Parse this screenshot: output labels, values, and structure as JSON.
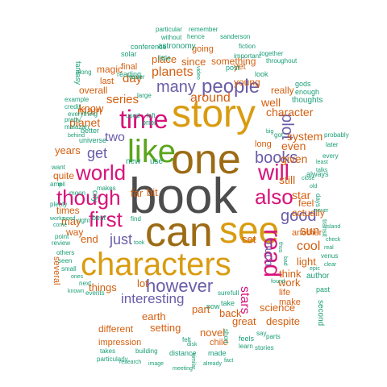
{
  "palette": {
    "gray": "#4d4d4d",
    "gold": "#d99b0f",
    "brown": "#9c6b14",
    "pink": "#d8127a",
    "green": "#5aa51c",
    "purple": "#6a5ca8",
    "orange": "#d45f0f",
    "teal": "#1b9e77"
  },
  "words": [
    {
      "text": "book",
      "color": "gray"
    },
    {
      "text": "one",
      "color": "brown"
    },
    {
      "text": "story",
      "color": "gold"
    },
    {
      "text": "can",
      "color": "brown"
    },
    {
      "text": "see",
      "color": "gold"
    },
    {
      "text": "characters",
      "color": "gold"
    },
    {
      "text": "like",
      "color": "green"
    },
    {
      "text": "time",
      "color": "pink"
    },
    {
      "text": "world",
      "color": "pink"
    },
    {
      "text": "though",
      "color": "pink"
    },
    {
      "text": "also",
      "color": "pink"
    },
    {
      "text": "will",
      "color": "pink"
    },
    {
      "text": "first",
      "color": "pink"
    },
    {
      "text": "read",
      "color": "pink"
    },
    {
      "text": "people",
      "color": "purple"
    },
    {
      "text": "however",
      "color": "purple"
    },
    {
      "text": "books",
      "color": "purple"
    },
    {
      "text": "many",
      "color": "purple"
    },
    {
      "text": "good",
      "color": "purple"
    },
    {
      "text": "plot",
      "color": "purple"
    },
    {
      "text": "get",
      "color": "purple"
    },
    {
      "text": "two",
      "color": "purple"
    },
    {
      "text": "just",
      "color": "purple"
    },
    {
      "text": "interesting",
      "color": "purple"
    },
    {
      "text": "much",
      "color": "purple"
    },
    {
      "text": "stars",
      "color": "pink"
    },
    {
      "text": "planets",
      "color": "orange"
    },
    {
      "text": "around",
      "color": "orange"
    },
    {
      "text": "series",
      "color": "orange"
    },
    {
      "text": "day",
      "color": "orange"
    },
    {
      "text": "planet",
      "color": "orange"
    },
    {
      "text": "main",
      "color": "orange"
    },
    {
      "text": "since",
      "color": "orange"
    },
    {
      "text": "place",
      "color": "orange"
    },
    {
      "text": "well",
      "color": "orange"
    },
    {
      "text": "character",
      "color": "orange"
    },
    {
      "text": "system",
      "color": "orange"
    },
    {
      "text": "even",
      "color": "orange"
    },
    {
      "text": "given",
      "color": "orange"
    },
    {
      "text": "still",
      "color": "orange"
    },
    {
      "text": "star",
      "color": "orange"
    },
    {
      "text": "cool",
      "color": "orange"
    },
    {
      "text": "sun",
      "color": "orange"
    },
    {
      "text": "set",
      "color": "orange"
    },
    {
      "text": "light",
      "color": "orange"
    },
    {
      "text": "think",
      "color": "orange"
    },
    {
      "text": "work",
      "color": "orange"
    },
    {
      "text": "science",
      "color": "orange"
    },
    {
      "text": "know",
      "color": "orange"
    },
    {
      "text": "years",
      "color": "orange"
    },
    {
      "text": "far",
      "color": "orange"
    },
    {
      "text": "bit",
      "color": "orange"
    },
    {
      "text": "may",
      "color": "orange"
    },
    {
      "text": "end",
      "color": "orange"
    },
    {
      "text": "things",
      "color": "orange"
    },
    {
      "text": "lot",
      "color": "orange"
    },
    {
      "text": "part",
      "color": "orange"
    },
    {
      "text": "earth",
      "color": "orange"
    },
    {
      "text": "setting",
      "color": "orange"
    },
    {
      "text": "novel",
      "color": "orange"
    },
    {
      "text": "back",
      "color": "orange"
    },
    {
      "text": "great",
      "color": "orange"
    },
    {
      "text": "despite",
      "color": "orange"
    },
    {
      "text": "overall",
      "color": "orange"
    },
    {
      "text": "quite",
      "color": "orange"
    },
    {
      "text": "times",
      "color": "orange"
    },
    {
      "text": "way",
      "color": "orange"
    },
    {
      "text": "several",
      "color": "orange"
    },
    {
      "text": "last",
      "color": "orange"
    },
    {
      "text": "magic",
      "color": "orange"
    },
    {
      "text": "final",
      "color": "orange"
    },
    {
      "text": "going",
      "color": "orange"
    },
    {
      "text": "something",
      "color": "orange"
    },
    {
      "text": "young",
      "color": "orange"
    },
    {
      "text": "really",
      "color": "orange"
    },
    {
      "text": "yet",
      "color": "orange"
    },
    {
      "text": "feel",
      "color": "orange"
    },
    {
      "text": "actually",
      "color": "orange"
    },
    {
      "text": "another",
      "color": "orange"
    },
    {
      "text": "different",
      "color": "orange"
    },
    {
      "text": "impression",
      "color": "orange"
    },
    {
      "text": "chile",
      "color": "orange"
    },
    {
      "text": "life",
      "color": "orange"
    },
    {
      "text": "make",
      "color": "orange"
    },
    {
      "text": "long",
      "color": "orange"
    },
    {
      "text": "second",
      "color": "teal"
    },
    {
      "text": "city",
      "color": "teal"
    },
    {
      "text": "fantasy",
      "color": "teal"
    },
    {
      "text": "astronomy",
      "color": "teal"
    },
    {
      "text": "little",
      "color": "teal"
    },
    {
      "text": "solar",
      "color": "teal"
    },
    {
      "text": "reading",
      "color": "teal"
    },
    {
      "text": "conference",
      "color": "teal"
    },
    {
      "text": "without",
      "color": "teal"
    },
    {
      "text": "particular",
      "color": "teal"
    },
    {
      "text": "remember",
      "color": "teal"
    },
    {
      "text": "hence",
      "color": "teal"
    },
    {
      "text": "sanderson",
      "color": "teal"
    },
    {
      "text": "fiction",
      "color": "teal"
    },
    {
      "text": "look",
      "color": "teal"
    },
    {
      "text": "together",
      "color": "teal"
    },
    {
      "text": "throughout",
      "color": "teal"
    },
    {
      "text": "important",
      "color": "teal"
    },
    {
      "text": "post",
      "color": "teal"
    },
    {
      "text": "video",
      "color": "teal"
    },
    {
      "text": "gods",
      "color": "teal"
    },
    {
      "text": "enough",
      "color": "teal"
    },
    {
      "text": "thoughts",
      "color": "teal"
    },
    {
      "text": "author",
      "color": "teal"
    },
    {
      "text": "past",
      "color": "teal"
    },
    {
      "text": "always",
      "color": "teal"
    },
    {
      "text": "days",
      "color": "teal"
    },
    {
      "text": "transit",
      "color": "teal"
    },
    {
      "text": "probably",
      "color": "teal"
    },
    {
      "text": "later",
      "color": "teal"
    },
    {
      "text": "every",
      "color": "teal"
    },
    {
      "text": "along",
      "color": "teal"
    },
    {
      "text": "example",
      "color": "teal"
    },
    {
      "text": "credit",
      "color": "teal"
    },
    {
      "text": "everything",
      "color": "teal"
    },
    {
      "text": "malazan",
      "color": "teal"
    },
    {
      "text": "pretty",
      "color": "teal"
    },
    {
      "text": "better",
      "color": "teal"
    },
    {
      "text": "universe",
      "color": "teal"
    },
    {
      "text": "behind",
      "color": "teal"
    },
    {
      "text": "water",
      "color": "teal"
    },
    {
      "text": "large",
      "color": "teal"
    },
    {
      "text": "used",
      "color": "teal"
    },
    {
      "text": "left",
      "color": "teal"
    },
    {
      "text": "prior",
      "color": "teal"
    },
    {
      "text": "new",
      "color": "teal"
    },
    {
      "text": "use",
      "color": "teal"
    },
    {
      "text": "want",
      "color": "teal"
    },
    {
      "text": "amp",
      "color": "teal"
    },
    {
      "text": "tell",
      "color": "teal"
    },
    {
      "text": "moon",
      "color": "teal"
    },
    {
      "text": "makes",
      "color": "teal"
    },
    {
      "text": "plenty",
      "color": "teal"
    },
    {
      "text": "works",
      "color": "teal"
    },
    {
      "text": "come",
      "color": "teal"
    },
    {
      "text": "point",
      "color": "teal"
    },
    {
      "text": "review",
      "color": "teal"
    },
    {
      "text": "others",
      "color": "teal"
    },
    {
      "text": "seen",
      "color": "teal"
    },
    {
      "text": "small",
      "color": "teal"
    },
    {
      "text": "ones",
      "color": "teal"
    },
    {
      "text": "next",
      "color": "teal"
    },
    {
      "text": "known",
      "color": "teal"
    },
    {
      "text": "events",
      "color": "teal"
    },
    {
      "text": "need",
      "color": "teal"
    },
    {
      "text": "right",
      "color": "teal"
    },
    {
      "text": "best",
      "color": "teal"
    },
    {
      "text": "find",
      "color": "teal"
    },
    {
      "text": "took",
      "color": "teal"
    },
    {
      "text": "takes",
      "color": "teal"
    },
    {
      "text": "particularly",
      "color": "teal"
    },
    {
      "text": "building",
      "color": "teal"
    },
    {
      "text": "research",
      "color": "teal"
    },
    {
      "text": "image",
      "color": "teal"
    },
    {
      "text": "meeting",
      "color": "teal"
    },
    {
      "text": "distance",
      "color": "teal"
    },
    {
      "text": "made",
      "color": "teal"
    },
    {
      "text": "already",
      "color": "teal"
    },
    {
      "text": "similar",
      "color": "teal"
    },
    {
      "text": "fact",
      "color": "teal"
    },
    {
      "text": "feels",
      "color": "teal"
    },
    {
      "text": "learn",
      "color": "teal"
    },
    {
      "text": "stories",
      "color": "teal"
    },
    {
      "text": "say",
      "color": "teal"
    },
    {
      "text": "parts",
      "color": "teal"
    },
    {
      "text": "epic",
      "color": "teal"
    },
    {
      "text": "clear",
      "color": "teal"
    },
    {
      "text": "venus",
      "color": "teal"
    },
    {
      "text": "real",
      "color": "teal"
    },
    {
      "text": "check",
      "color": "teal"
    },
    {
      "text": "island",
      "color": "teal"
    },
    {
      "text": "never",
      "color": "teal"
    },
    {
      "text": "old",
      "color": "teal"
    },
    {
      "text": "close",
      "color": "teal"
    },
    {
      "text": "talks",
      "color": "teal"
    },
    {
      "text": "least",
      "color": "teal"
    },
    {
      "text": "got",
      "color": "teal"
    },
    {
      "text": "big",
      "color": "teal"
    },
    {
      "text": "found",
      "color": "teal"
    },
    {
      "text": "take",
      "color": "teal"
    },
    {
      "text": "now",
      "color": "teal"
    },
    {
      "text": "sure",
      "color": "teal"
    },
    {
      "text": "full",
      "color": "teal"
    },
    {
      "text": "short",
      "color": "teal"
    },
    {
      "text": "felt",
      "color": "teal"
    },
    {
      "text": "disk",
      "color": "teal"
    },
    {
      "text": "bad",
      "color": "teal"
    },
    {
      "text": "thus",
      "color": "teal"
    }
  ]
}
